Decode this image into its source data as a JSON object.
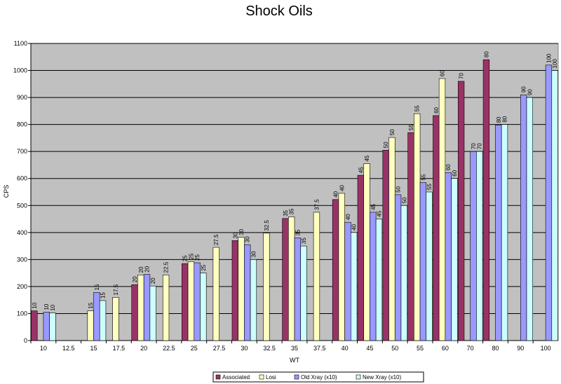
{
  "chart_data": {
    "type": "bar",
    "title": "Shock Oils",
    "xlabel": "WT",
    "ylabel": "CPS",
    "ylim": [
      0,
      1100
    ],
    "ytick_step": 100,
    "grid": true,
    "legend_position": "bottom",
    "categories": [
      "10",
      "12.5",
      "15",
      "17.5",
      "20",
      "22.5",
      "25",
      "27.5",
      "30",
      "32.5",
      "35",
      "37.5",
      "40",
      "45",
      "50",
      "55",
      "60",
      "70",
      "80",
      "90",
      "100"
    ],
    "series": [
      {
        "name": "Associated",
        "color": "#993366",
        "values": [
          110,
          null,
          null,
          null,
          207,
          null,
          285,
          null,
          370,
          null,
          452,
          null,
          522,
          612,
          705,
          770,
          833,
          960,
          1040,
          null,
          null
        ],
        "labels": [
          "10",
          null,
          null,
          null,
          "20",
          null,
          "25",
          null,
          "30",
          null,
          "35",
          null,
          "40",
          "45",
          "50",
          "55",
          "60",
          "70",
          "80",
          null,
          null
        ]
      },
      {
        "name": "Losi",
        "color": "#ffffc0",
        "values": [
          null,
          null,
          110,
          160,
          243,
          243,
          292,
          345,
          382,
          398,
          458,
          475,
          545,
          655,
          752,
          840,
          970,
          null,
          null,
          null,
          null
        ],
        "labels": [
          null,
          null,
          "15",
          "17.5",
          "20",
          "22.5",
          "25",
          "27.5",
          "30",
          "32.5",
          "35",
          "37.5",
          "40",
          "45",
          "50",
          "55",
          "60",
          null,
          null,
          null,
          null
        ]
      },
      {
        "name": "Old Xray (x10)",
        "color": "#9999ff",
        "values": [
          105,
          null,
          178,
          null,
          245,
          null,
          288,
          null,
          355,
          null,
          380,
          null,
          438,
          475,
          540,
          585,
          622,
          700,
          798,
          910,
          1020
        ],
        "labels": [
          "10",
          null,
          "15",
          null,
          "20",
          null,
          "25",
          null,
          "30",
          null,
          "35",
          null,
          "40",
          "45",
          "50",
          "55",
          "60",
          "70",
          "80",
          "90",
          "100"
        ]
      },
      {
        "name": "New Xray (x10)",
        "color": "#ccffff",
        "values": [
          102,
          null,
          148,
          null,
          202,
          null,
          250,
          null,
          300,
          null,
          350,
          null,
          400,
          450,
          500,
          550,
          600,
          700,
          800,
          900,
          1000
        ],
        "labels": [
          "10",
          null,
          "15",
          null,
          "20",
          null,
          "25",
          null,
          "30",
          null,
          "35",
          null,
          "40",
          "45",
          "50",
          "55",
          "60",
          "70",
          "80",
          "90",
          "100"
        ]
      }
    ]
  }
}
